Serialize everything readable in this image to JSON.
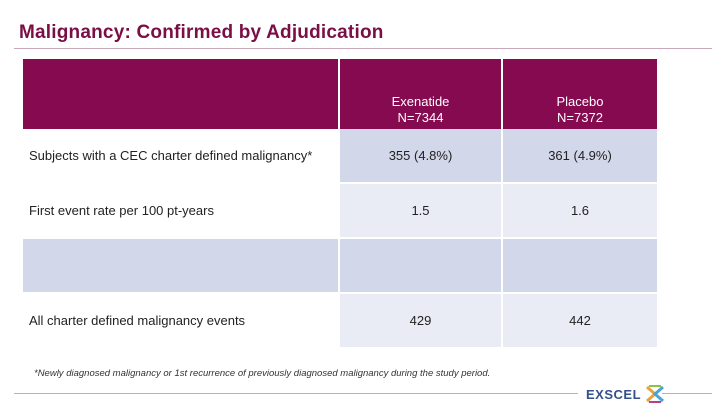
{
  "slide": {
    "title": "Malignancy: Confirmed by Adjudication",
    "footnote": "*Newly diagnosed malignancy or 1st recurrence of previously diagnosed malignancy during the study period.",
    "logo_text": "EXSCEL"
  },
  "table": {
    "columns": [
      {
        "name": "",
        "n": ""
      },
      {
        "name": "Exenatide",
        "n": "N=7344"
      },
      {
        "name": "Placebo",
        "n": "N=7372"
      }
    ],
    "rows": [
      {
        "label": "Subjects with a CEC charter defined malignancy*",
        "exenatide": "355 (4.8%)",
        "placebo": "361 (4.9%)"
      },
      {
        "label": "First event rate per 100 pt-years",
        "exenatide": "1.5",
        "placebo": "1.6"
      },
      {
        "label": "",
        "exenatide": "",
        "placebo": ""
      },
      {
        "label": "All charter defined malignancy events",
        "exenatide": "429",
        "placebo": "442"
      }
    ]
  },
  "colors": {
    "header_bg": "#850a4f",
    "title": "#7a0f45",
    "shade_dark": "#d3d7ea",
    "shade_light": "#eaecf5",
    "logo_text": "#34508a"
  }
}
